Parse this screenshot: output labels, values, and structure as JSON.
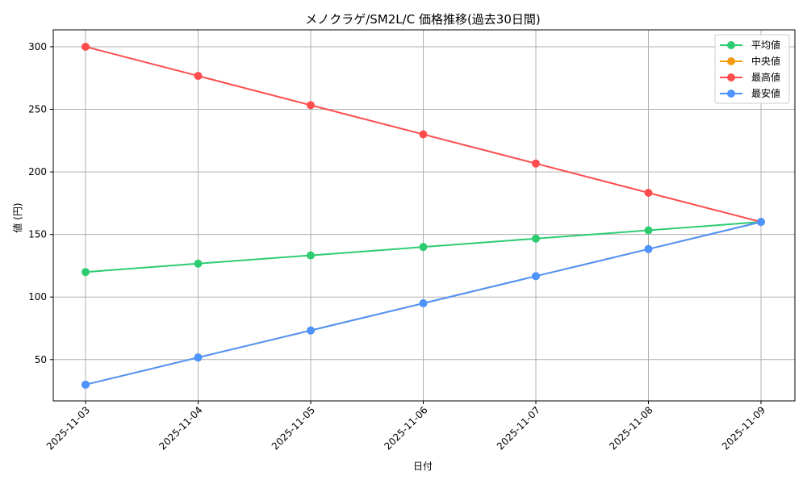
{
  "chart_data": {
    "type": "line",
    "title": "メノクラゲ/SM2L/C 価格推移(過去30日間)",
    "xlabel": "日付",
    "ylabel": "値 (円)",
    "categories": [
      "2025-11-03",
      "2025-11-04",
      "2025-11-05",
      "2025-11-06",
      "2025-11-07",
      "2025-11-08",
      "2025-11-09"
    ],
    "ylim": [
      17,
      313.5
    ],
    "yticks": [
      50,
      100,
      150,
      200,
      250,
      300
    ],
    "grid": true,
    "legend_position": "upper right",
    "series": [
      {
        "name": "平均値",
        "color": "#2ecc71",
        "values": [
          120,
          126.7,
          133.3,
          140,
          146.7,
          153.3,
          160
        ]
      },
      {
        "name": "中央値",
        "color": "#f39c12",
        "values": [
          30,
          51.7,
          73.3,
          95,
          116.7,
          138.3,
          160
        ]
      },
      {
        "name": "最高値",
        "color": "#ff4d4d",
        "values": [
          300,
          276.7,
          253.3,
          230,
          206.7,
          183.3,
          160
        ]
      },
      {
        "name": "最安値",
        "color": "#4d94ff",
        "values": [
          30,
          51.7,
          73.3,
          95,
          116.7,
          138.3,
          160
        ]
      }
    ]
  }
}
